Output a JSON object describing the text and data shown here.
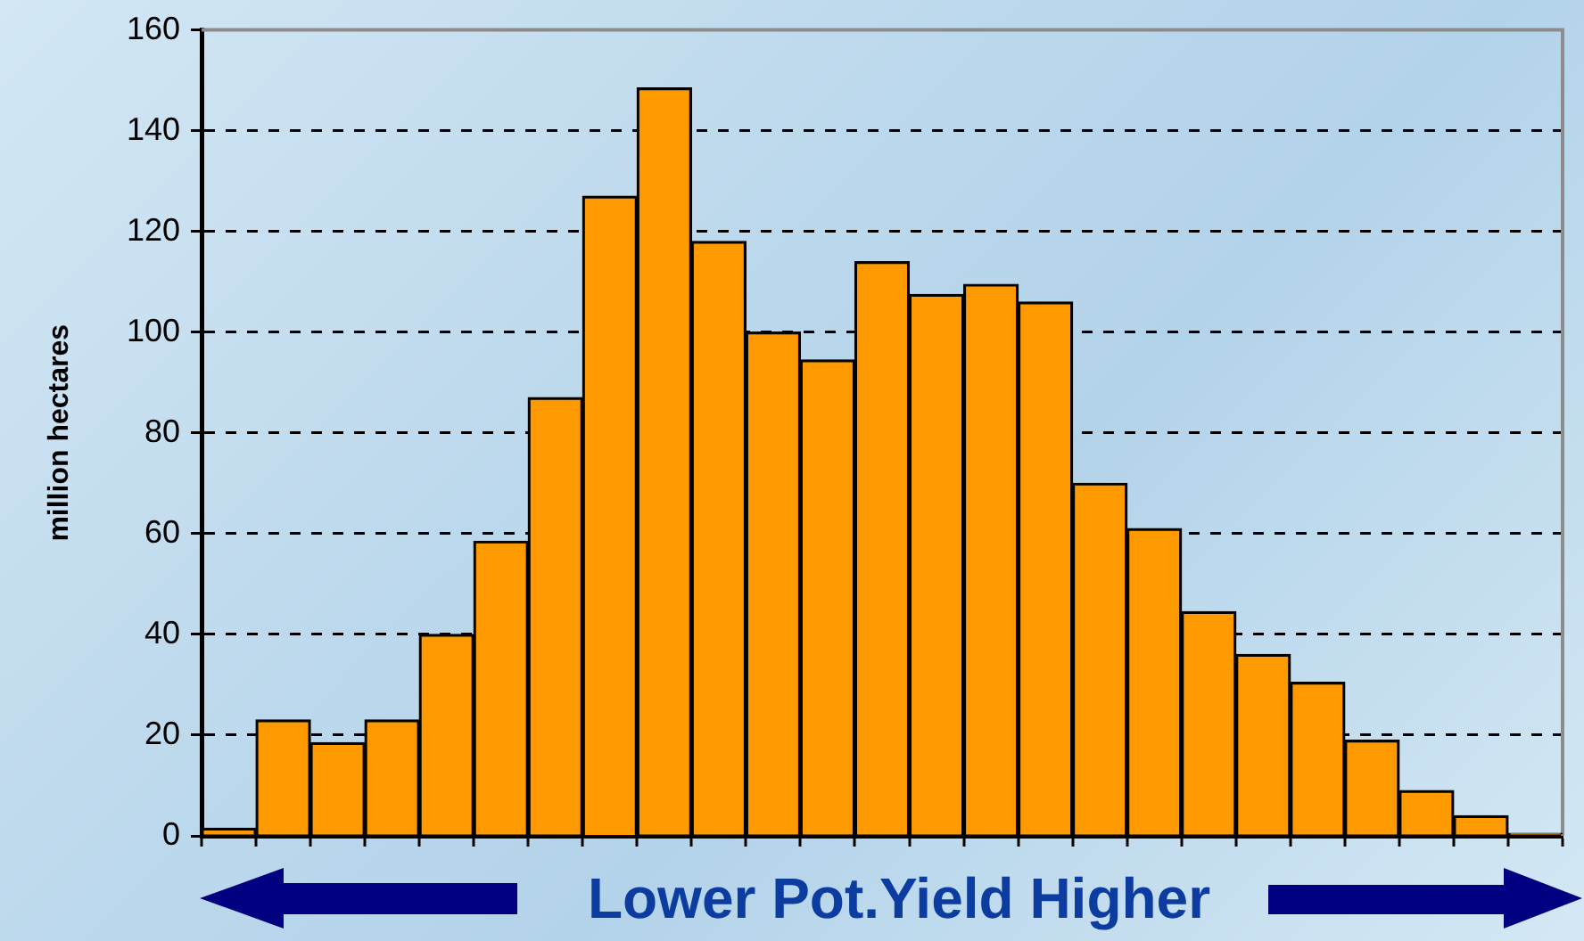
{
  "chart_data": {
    "type": "bar",
    "xlabel": "Lower Pot.Yield Higher",
    "ylabel": "million hectares",
    "categories": [
      null,
      null,
      null,
      null,
      null,
      null,
      null,
      null,
      null,
      null,
      null,
      null,
      null,
      null,
      null,
      null,
      null,
      null,
      null,
      null,
      null,
      null,
      null,
      null,
      null
    ],
    "values": [
      1.5,
      23,
      18.5,
      23,
      40,
      58.5,
      87,
      127,
      148.5,
      118,
      100,
      94.5,
      114,
      107.5,
      109.5,
      106,
      70,
      61,
      44.5,
      36,
      30.5,
      19,
      9,
      4,
      0.5
    ],
    "color": "#ff9900",
    "ylim": [
      0,
      160
    ],
    "yticks": [
      0,
      20,
      40,
      60,
      80,
      100,
      120,
      140,
      160
    ],
    "grid": "y"
  }
}
